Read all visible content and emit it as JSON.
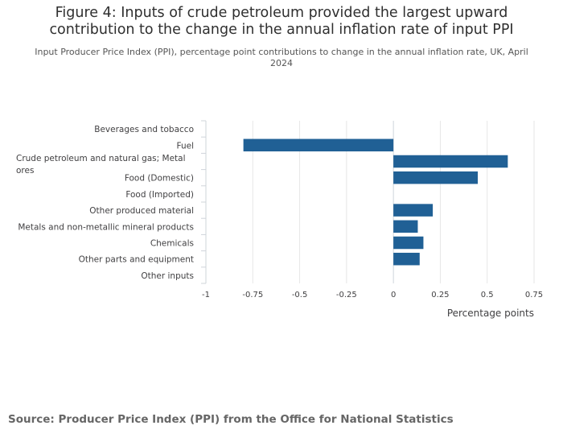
{
  "chart_data": {
    "type": "bar",
    "orientation": "horizontal",
    "title": "Figure 4: Inputs of crude petroleum provided the largest upward contribution to the change in the annual inflation rate of input PPI",
    "subtitle": "Input Producer Price Index (PPI), percentage point contributions to change in the annual inflation rate, UK, April 2024",
    "categories": [
      "Beverages and tobacco",
      "Fuel",
      "Crude petroleum and natural gas; Metal ores",
      "Food (Domestic)",
      "Food (Imported)",
      "Other produced material",
      "Metals and non-metallic mineral products",
      "Chemicals",
      "Other parts and equipment",
      "Other inputs"
    ],
    "category_lines": [
      [
        "Beverages and tobacco"
      ],
      [
        "Fuel"
      ],
      [
        "Crude petroleum and natural gas; Metal",
        "ores"
      ],
      [
        "Food (Domestic)"
      ],
      [
        "Food (Imported)"
      ],
      [
        "Other produced material"
      ],
      [
        "Metals and non-metallic mineral products"
      ],
      [
        "Chemicals"
      ],
      [
        "Other parts and equipment"
      ],
      [
        "Other inputs"
      ]
    ],
    "values": [
      0.0,
      -0.8,
      0.61,
      0.45,
      0.0,
      0.21,
      0.13,
      0.16,
      0.14,
      0.0
    ],
    "xlabel": "Percentage points",
    "ylabel": "",
    "xlim": [
      -1,
      0.75
    ],
    "xticks": [
      -1,
      -0.75,
      -0.5,
      -0.25,
      0,
      0.25,
      0.5,
      0.75
    ],
    "xtick_labels": [
      "-1",
      "-0.75",
      "-0.5",
      "-0.25",
      "0",
      "0.25",
      "0.5",
      "0.75"
    ],
    "grid": true,
    "bar_color": "#206095",
    "source": "Source: Producer Price Index (PPI) from the Office for National Statistics"
  }
}
